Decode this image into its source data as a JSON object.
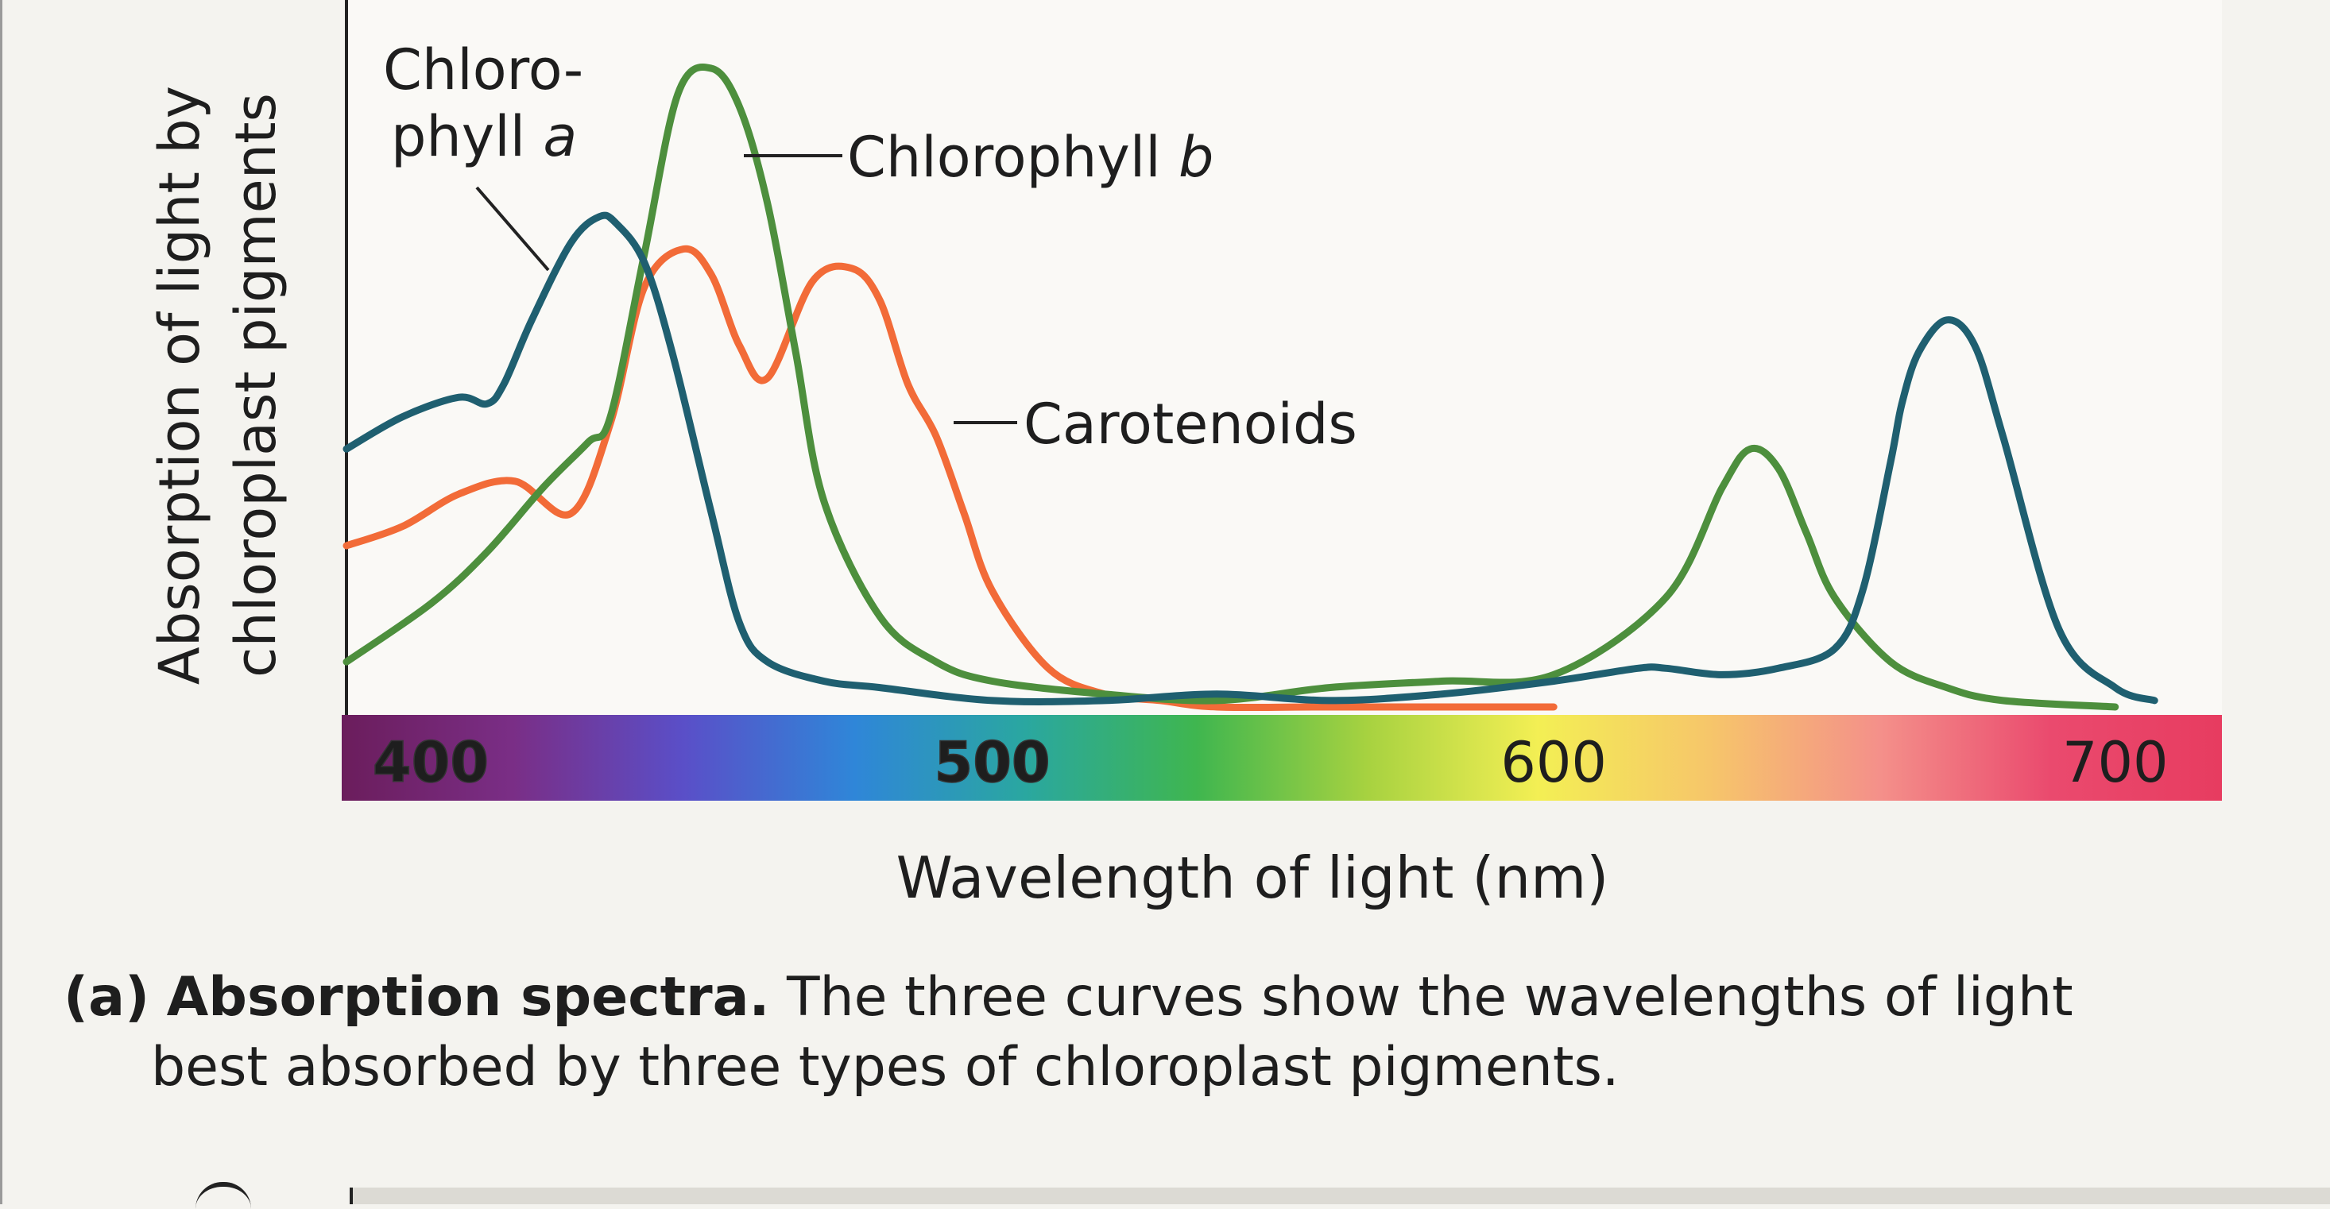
{
  "chart_data": {
    "type": "line",
    "ylabel_line1": "Absorption of light by",
    "ylabel_line2": "chloroplast pigments",
    "xlabel": "Wavelength of light (nm)",
    "xlim": [
      385,
      719
    ],
    "ylim": [
      0,
      1
    ],
    "x_ticks": [
      {
        "value": 400,
        "label": "400"
      },
      {
        "value": 500,
        "label": "500"
      },
      {
        "value": 600,
        "label": "600"
      },
      {
        "value": 700,
        "label": "700"
      }
    ],
    "spectrum_colors": [
      "#6b1d5c",
      "#7a2e86",
      "#5a4fc8",
      "#2f86d8",
      "#2aa7a0",
      "#3fb64f",
      "#a7d240",
      "#f3ef54",
      "#f6c66a",
      "#f4908a",
      "#ea4a6e",
      "#e73c60"
    ],
    "grid": false,
    "legend": "inline labels",
    "series": [
      {
        "name_line1": "Chloro-",
        "name_line2": "phyll a",
        "color": "#1f5f70",
        "x": [
          385,
          395,
          405,
          410,
          413,
          418,
          425,
          430,
          433,
          438,
          443,
          450,
          455,
          460,
          470,
          480,
          500,
          520,
          540,
          560,
          580,
          600,
          615,
          620,
          630,
          640,
          650,
          655,
          660,
          662,
          665,
          670,
          675,
          680,
          690,
          700,
          707
        ],
        "y": [
          0.4,
          0.45,
          0.48,
          0.47,
          0.5,
          0.6,
          0.72,
          0.76,
          0.75,
          0.69,
          0.55,
          0.3,
          0.13,
          0.07,
          0.04,
          0.03,
          0.01,
          0.01,
          0.02,
          0.01,
          0.02,
          0.04,
          0.06,
          0.06,
          0.05,
          0.06,
          0.09,
          0.18,
          0.38,
          0.47,
          0.55,
          0.6,
          0.56,
          0.42,
          0.12,
          0.03,
          0.01
        ]
      },
      {
        "name": "Chlorophyll b",
        "color": "#4d8f3d",
        "x": [
          385,
          400,
          410,
          420,
          428,
          432,
          438,
          444,
          450,
          455,
          460,
          465,
          470,
          480,
          490,
          500,
          520,
          540,
          560,
          580,
          600,
          620,
          630,
          635,
          640,
          645,
          650,
          660,
          670,
          680,
          700
        ],
        "y": [
          0.07,
          0.16,
          0.24,
          0.34,
          0.41,
          0.45,
          0.7,
          0.95,
          0.99,
          0.93,
          0.78,
          0.55,
          0.32,
          0.14,
          0.07,
          0.04,
          0.02,
          0.01,
          0.03,
          0.04,
          0.05,
          0.17,
          0.34,
          0.4,
          0.37,
          0.27,
          0.17,
          0.07,
          0.03,
          0.01,
          0.0
        ]
      },
      {
        "name": "Carotenoids",
        "color": "#f26b38",
        "x": [
          385,
          395,
          405,
          415,
          425,
          432,
          438,
          445,
          450,
          455,
          460,
          468,
          475,
          480,
          485,
          490,
          495,
          500,
          510,
          520,
          530,
          540,
          560,
          600
        ],
        "y": [
          0.25,
          0.28,
          0.33,
          0.35,
          0.3,
          0.44,
          0.65,
          0.71,
          0.67,
          0.56,
          0.51,
          0.66,
          0.68,
          0.63,
          0.5,
          0.42,
          0.3,
          0.18,
          0.06,
          0.02,
          0.01,
          0.0,
          0.0,
          0.0
        ]
      }
    ]
  },
  "caption": {
    "label": "(a)",
    "title": "Absorption spectra.",
    "text_line1": "The three curves show the wavelengths of light",
    "text_line2": "best absorbed by three types of chloroplast pigments."
  }
}
